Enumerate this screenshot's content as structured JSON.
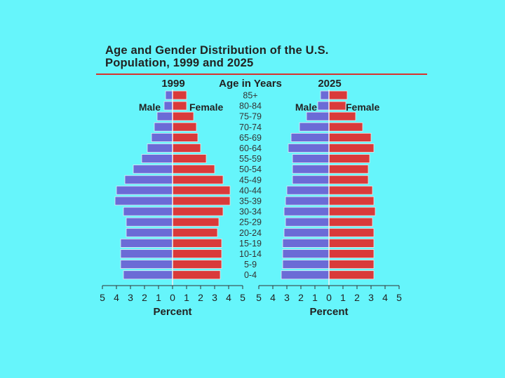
{
  "title": {
    "line1": "Age and Gender Distribution of the U.S.",
    "line2": "Population, 1999 and 2025"
  },
  "colors": {
    "background": "#66F5FB",
    "male": "#6B6BD6",
    "female": "#D93A3A",
    "rule": "#D8322C",
    "text": "#222222"
  },
  "center_label": "Age in Years",
  "chart_data": [
    {
      "type": "bar",
      "orientation": "horizontal",
      "title": "1999",
      "xlabel": "Percent",
      "xlim": [
        -5,
        5
      ],
      "x_ticks": [
        "5",
        "4",
        "3",
        "2",
        "1",
        "0",
        "1",
        "2",
        "3",
        "4",
        "5"
      ],
      "legend": [
        "Male",
        "Female"
      ],
      "categories": [
        "85+",
        "80-84",
        "75-79",
        "70-74",
        "65-69",
        "60-64",
        "55-59",
        "50-54",
        "45-49",
        "40-44",
        "35-39",
        "30-34",
        "25-29",
        "20-24",
        "15-19",
        "10-14",
        "5-9",
        "0-4"
      ],
      "series": [
        {
          "name": "Male",
          "values": [
            0.5,
            0.6,
            1.1,
            1.3,
            1.5,
            1.8,
            2.2,
            2.8,
            3.4,
            4.0,
            4.1,
            3.5,
            3.3,
            3.3,
            3.7,
            3.7,
            3.7,
            3.5
          ]
        },
        {
          "name": "Female",
          "values": [
            1.0,
            1.0,
            1.5,
            1.7,
            1.8,
            2.0,
            2.4,
            3.0,
            3.6,
            4.1,
            4.1,
            3.6,
            3.3,
            3.2,
            3.5,
            3.5,
            3.5,
            3.4
          ]
        }
      ]
    },
    {
      "type": "bar",
      "orientation": "horizontal",
      "title": "2025",
      "xlabel": "Percent",
      "xlim": [
        -5,
        5
      ],
      "x_ticks": [
        "5",
        "4",
        "3",
        "2",
        "1",
        "0",
        "1",
        "2",
        "3",
        "4",
        "5"
      ],
      "legend": [
        "Male",
        "Female"
      ],
      "categories": [
        "85+",
        "80-84",
        "75-79",
        "70-74",
        "65-69",
        "60-64",
        "55-59",
        "50-54",
        "45-49",
        "40-44",
        "35-39",
        "30-34",
        "25-29",
        "20-24",
        "15-19",
        "10-14",
        "5-9",
        "0-4"
      ],
      "series": [
        {
          "name": "Male",
          "values": [
            0.6,
            0.8,
            1.6,
            2.1,
            2.7,
            2.9,
            2.6,
            2.6,
            2.6,
            3.0,
            3.1,
            3.2,
            3.1,
            3.2,
            3.3,
            3.3,
            3.3,
            3.4
          ]
        },
        {
          "name": "Female",
          "values": [
            1.3,
            1.2,
            1.9,
            2.4,
            3.0,
            3.2,
            2.9,
            2.8,
            2.8,
            3.1,
            3.2,
            3.3,
            3.1,
            3.2,
            3.2,
            3.2,
            3.2,
            3.2
          ]
        }
      ]
    }
  ]
}
